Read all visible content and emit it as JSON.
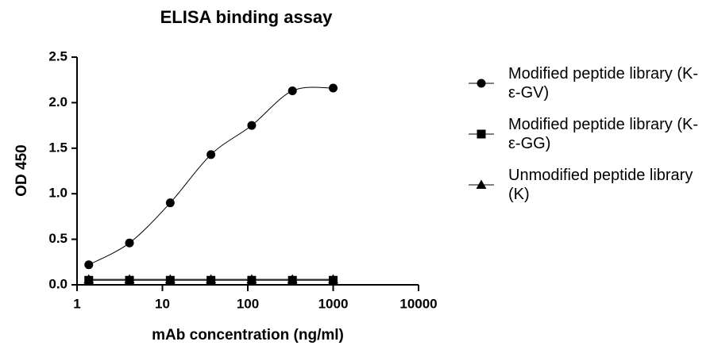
{
  "chart_data": {
    "type": "scatter",
    "title": "ELISA binding assay",
    "x_label": "mAb concentration (ng/ml)",
    "y_label": "OD 450",
    "xscale": "log",
    "xlim": [
      1,
      10000
    ],
    "xticks": [
      1,
      10,
      100,
      1000,
      10000
    ],
    "ylim": [
      0,
      2.5
    ],
    "yticks": [
      {
        "value": 0,
        "label": "0.0"
      },
      0.5,
      {
        "value": 1,
        "label": "1.0"
      },
      1.5,
      {
        "value": 2,
        "label": "2.0"
      },
      2.5
    ],
    "x": [
      1.372,
      4.115,
      12.35,
      37.04,
      111.1,
      333.3,
      1000
    ],
    "series": [
      {
        "name": "Modified peptide library (K-ε-GV)",
        "color": "#000000",
        "marker": "circle",
        "values": [
          0.22,
          0.46,
          0.9,
          1.43,
          1.75,
          2.13,
          2.16
        ]
      },
      {
        "name": "Modified peptide library (K-ε-GG)",
        "color": "#000000",
        "marker": "square",
        "values": [
          0.05,
          0.05,
          0.05,
          0.05,
          0.05,
          0.05,
          0.05
        ]
      },
      {
        "name": "Unmodified peptide library (K)",
        "color": "#000000",
        "marker": "triangle",
        "values": [
          0.06,
          0.06,
          0.06,
          0.06,
          0.06,
          0.06,
          0.06
        ]
      }
    ]
  }
}
